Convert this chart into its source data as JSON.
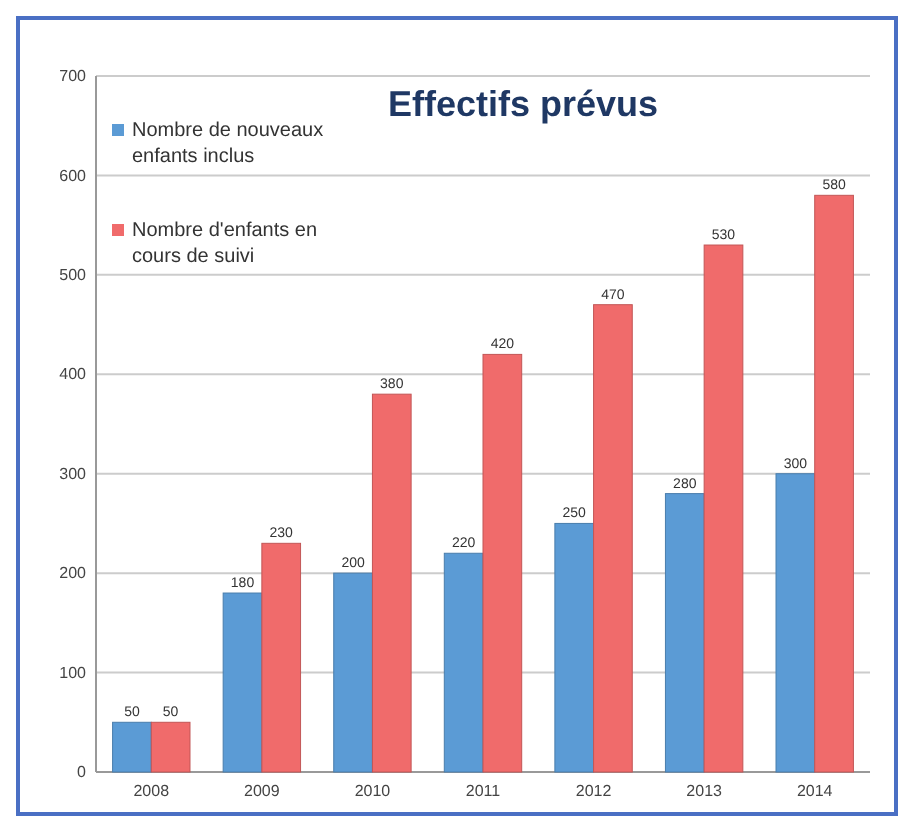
{
  "chart_data": {
    "type": "bar",
    "title": "Effectifs prévus",
    "categories": [
      "2008",
      "2009",
      "2010",
      "2011",
      "2012",
      "2013",
      "2014"
    ],
    "series": [
      {
        "name": "Nombre de nouveaux enfants inclus",
        "color": "#5b9bd5",
        "values": [
          50,
          180,
          200,
          220,
          250,
          280,
          300
        ]
      },
      {
        "name": "Nombre d'enfants en cours de suivi",
        "color": "#f06b6b",
        "values": [
          50,
          230,
          380,
          420,
          470,
          530,
          580
        ]
      }
    ],
    "ylim": [
      0,
      700
    ],
    "yticks": [
      0,
      100,
      200,
      300,
      400,
      500,
      600,
      700
    ],
    "grid": "y",
    "legend": "top left",
    "data_labels": true
  }
}
